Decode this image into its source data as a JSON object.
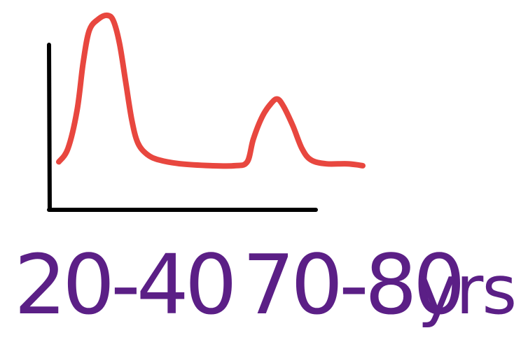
{
  "chart_data": {
    "type": "line",
    "title": "",
    "xlabel": "",
    "ylabel": "",
    "x_tick_labels": [
      "20-40",
      "70-80"
    ],
    "x_unit": "yrs",
    "grid": false,
    "legend": "none",
    "colors": {
      "curve": "#e8473f",
      "axes": "#000000",
      "labels": "#5b1f86"
    },
    "ylim": [
      0,
      1
    ],
    "series": [
      {
        "points": [
          [
            0.0,
            0.23
          ],
          [
            0.03,
            0.3
          ],
          [
            0.06,
            0.5
          ],
          [
            0.08,
            0.75
          ],
          [
            0.1,
            0.92
          ],
          [
            0.13,
            0.98
          ],
          [
            0.16,
            1.0
          ],
          [
            0.18,
            0.97
          ],
          [
            0.2,
            0.85
          ],
          [
            0.22,
            0.65
          ],
          [
            0.24,
            0.45
          ],
          [
            0.26,
            0.33
          ],
          [
            0.29,
            0.27
          ],
          [
            0.33,
            0.24
          ],
          [
            0.4,
            0.22
          ],
          [
            0.5,
            0.21
          ],
          [
            0.58,
            0.21
          ],
          [
            0.62,
            0.23
          ],
          [
            0.64,
            0.35
          ],
          [
            0.67,
            0.47
          ],
          [
            0.7,
            0.54
          ],
          [
            0.72,
            0.56
          ],
          [
            0.74,
            0.52
          ],
          [
            0.77,
            0.42
          ],
          [
            0.8,
            0.3
          ],
          [
            0.83,
            0.24
          ],
          [
            0.88,
            0.22
          ],
          [
            0.95,
            0.22
          ],
          [
            1.0,
            0.21
          ]
        ]
      }
    ]
  }
}
